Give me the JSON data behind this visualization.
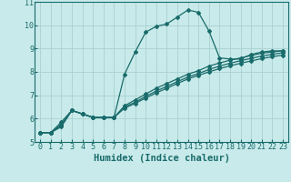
{
  "xlabel": "Humidex (Indice chaleur)",
  "bg_color": "#c8eaea",
  "line_color": "#1a6b6b",
  "xlim": [
    -0.5,
    23.5
  ],
  "ylim": [
    5,
    11
  ],
  "xticks": [
    0,
    1,
    2,
    3,
    4,
    5,
    6,
    7,
    8,
    9,
    10,
    11,
    12,
    13,
    14,
    15,
    16,
    17,
    18,
    19,
    20,
    21,
    22,
    23
  ],
  "yticks": [
    5,
    6,
    7,
    8,
    9,
    10,
    11
  ],
  "series": [
    {
      "x": [
        0,
        1,
        2,
        3,
        4,
        5,
        6,
        7,
        8,
        9,
        10,
        11,
        12,
        13,
        14,
        15,
        16,
        17,
        18,
        19,
        20,
        21,
        22,
        23
      ],
      "y": [
        5.4,
        5.4,
        5.85,
        6.35,
        6.2,
        6.05,
        6.05,
        6.05,
        7.9,
        8.85,
        9.7,
        9.95,
        10.05,
        10.35,
        10.65,
        10.55,
        9.75,
        8.6,
        8.55,
        8.55,
        8.75,
        8.85,
        8.9,
        8.9
      ]
    },
    {
      "x": [
        0,
        1,
        2,
        3,
        4,
        5,
        6,
        7,
        8,
        9,
        10,
        11,
        12,
        13,
        14,
        15,
        16,
        17,
        18,
        19,
        20,
        21,
        22,
        23
      ],
      "y": [
        5.4,
        5.4,
        5.75,
        6.35,
        6.2,
        6.05,
        6.05,
        6.05,
        6.55,
        6.8,
        7.05,
        7.3,
        7.5,
        7.7,
        7.9,
        8.05,
        8.25,
        8.38,
        8.5,
        8.6,
        8.7,
        8.8,
        8.85,
        8.9
      ]
    },
    {
      "x": [
        0,
        1,
        2,
        3,
        4,
        5,
        6,
        7,
        8,
        9,
        10,
        11,
        12,
        13,
        14,
        15,
        16,
        17,
        18,
        19,
        20,
        21,
        22,
        23
      ],
      "y": [
        5.4,
        5.4,
        5.7,
        6.35,
        6.2,
        6.05,
        6.05,
        6.05,
        6.5,
        6.7,
        6.95,
        7.18,
        7.38,
        7.58,
        7.78,
        7.93,
        8.1,
        8.25,
        8.37,
        8.48,
        8.58,
        8.68,
        8.75,
        8.82
      ]
    },
    {
      "x": [
        0,
        1,
        2,
        3,
        4,
        5,
        6,
        7,
        8,
        9,
        10,
        11,
        12,
        13,
        14,
        15,
        16,
        17,
        18,
        19,
        20,
        21,
        22,
        23
      ],
      "y": [
        5.4,
        5.4,
        5.65,
        6.35,
        6.2,
        6.05,
        6.05,
        6.05,
        6.45,
        6.65,
        6.88,
        7.1,
        7.3,
        7.5,
        7.7,
        7.85,
        8.0,
        8.14,
        8.26,
        8.37,
        8.47,
        8.57,
        8.65,
        8.72
      ]
    }
  ],
  "grid_color": "#aad0d0",
  "marker": "D",
  "markersize": 2.0,
  "linewidth": 0.9,
  "xlabel_fontsize": 7.5,
  "tick_fontsize": 6.0
}
